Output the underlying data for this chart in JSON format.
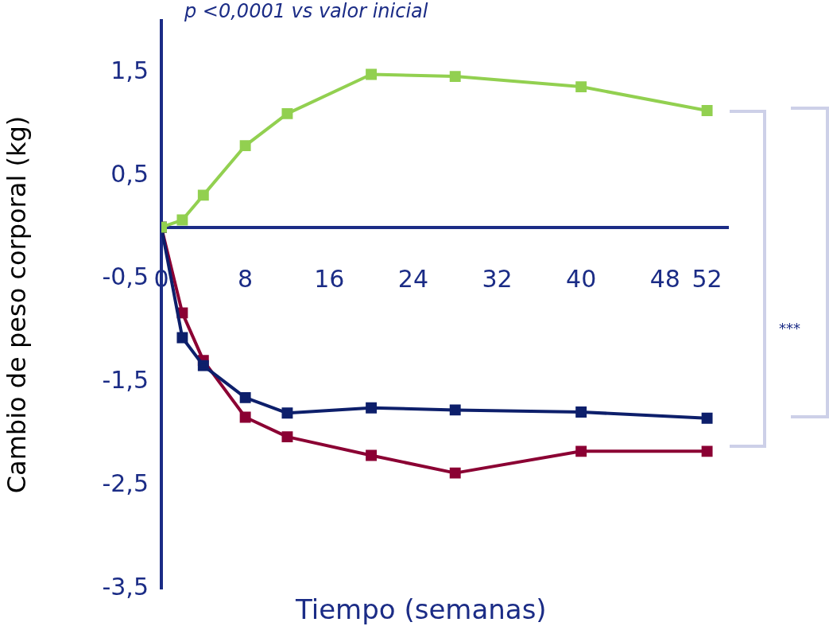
{
  "chart_data": {
    "type": "line",
    "xlabel": "Tiempo (semanas)",
    "ylabel": "Cambio de peso corporal (kg)",
    "annotations": [
      "p <0,0001 vs valor inicial",
      "***"
    ],
    "x": [
      0,
      2,
      4,
      8,
      12,
      20,
      28,
      40,
      52
    ],
    "series": [
      {
        "color": "#92d050",
        "values": [
          0,
          0.07,
          0.31,
          0.79,
          1.1,
          1.48,
          1.46,
          1.36,
          1.13
        ]
      },
      {
        "color": "#0d1f6b",
        "values": [
          0,
          -1.07,
          -1.34,
          -1.65,
          -1.8,
          -1.75,
          -1.77,
          -1.79,
          -1.85
        ]
      },
      {
        "color": "#8b0033",
        "values": [
          0,
          -0.83,
          -1.29,
          -1.84,
          -2.03,
          -2.21,
          -2.38,
          -2.17,
          -2.17
        ]
      }
    ],
    "xlim": [
      0,
      54
    ],
    "xticks": [
      0,
      8,
      16,
      24,
      32,
      40,
      48,
      52
    ],
    "ylim": [
      -3.5,
      2
    ],
    "yticks": [
      {
        "value": 1.5,
        "label": "1,5"
      },
      {
        "value": 0.5,
        "label": "0,5"
      },
      {
        "value": -0.5,
        "label": "-0,5"
      },
      {
        "value": -1.5,
        "label": "-1,5"
      },
      {
        "value": -2.5,
        "label": "-2,5"
      },
      {
        "value": -3.5,
        "label": "-3,5"
      }
    ],
    "marker": "square",
    "line_style": "solid",
    "grid": false,
    "legend": false
  }
}
